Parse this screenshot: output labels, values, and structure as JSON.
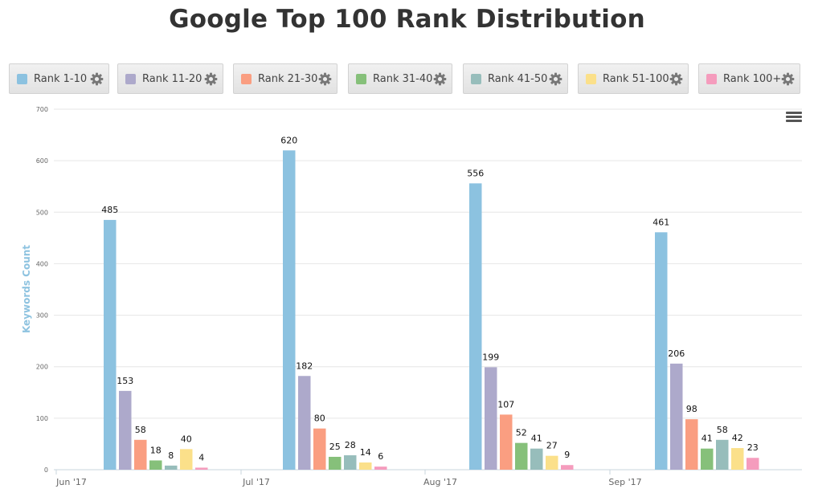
{
  "title": "Google Top 100 Rank Distribution",
  "legend": [
    {
      "label": "Rank 1-10",
      "color": "#8cc2e0"
    },
    {
      "label": "Rank 11-20",
      "color": "#ada9cb"
    },
    {
      "label": "Rank 21-30",
      "color": "#fa9e81"
    },
    {
      "label": "Rank 31-40",
      "color": "#86c07a"
    },
    {
      "label": "Rank 41-50",
      "color": "#97bdbb"
    },
    {
      "label": "Rank 51-100",
      "color": "#fbe08a"
    },
    {
      "label": "Rank 100+",
      "color": "#f59cbd"
    }
  ],
  "chart_data": {
    "type": "bar",
    "title": "Google Top 100 Rank Distribution",
    "xlabel": "",
    "ylabel": "Keywords Count",
    "ylim": [
      0,
      700
    ],
    "yticks": [
      0,
      100,
      200,
      300,
      400,
      500,
      600,
      700
    ],
    "grid": true,
    "x_ticks": [
      "Jun '17",
      "Jul '17",
      "Aug '17",
      "Sep '17"
    ],
    "categories": [
      "Jun '17",
      "Jul '17",
      "Aug '17",
      "Sep '17"
    ],
    "series": [
      {
        "name": "Rank 1-10",
        "color": "#8cc2e0",
        "values": [
          485,
          620,
          556,
          461
        ]
      },
      {
        "name": "Rank 11-20",
        "color": "#ada9cb",
        "values": [
          153,
          182,
          199,
          206
        ]
      },
      {
        "name": "Rank 21-30",
        "color": "#fa9e81",
        "values": [
          58,
          80,
          107,
          98
        ]
      },
      {
        "name": "Rank 31-40",
        "color": "#86c07a",
        "values": [
          18,
          25,
          52,
          41
        ]
      },
      {
        "name": "Rank 41-50",
        "color": "#97bdbb",
        "values": [
          8,
          28,
          41,
          58
        ]
      },
      {
        "name": "Rank 51-100",
        "color": "#fbe08a",
        "values": [
          40,
          14,
          27,
          42
        ]
      },
      {
        "name": "Rank 100+",
        "color": "#f59cbd",
        "values": [
          4,
          6,
          9,
          23
        ]
      }
    ]
  }
}
